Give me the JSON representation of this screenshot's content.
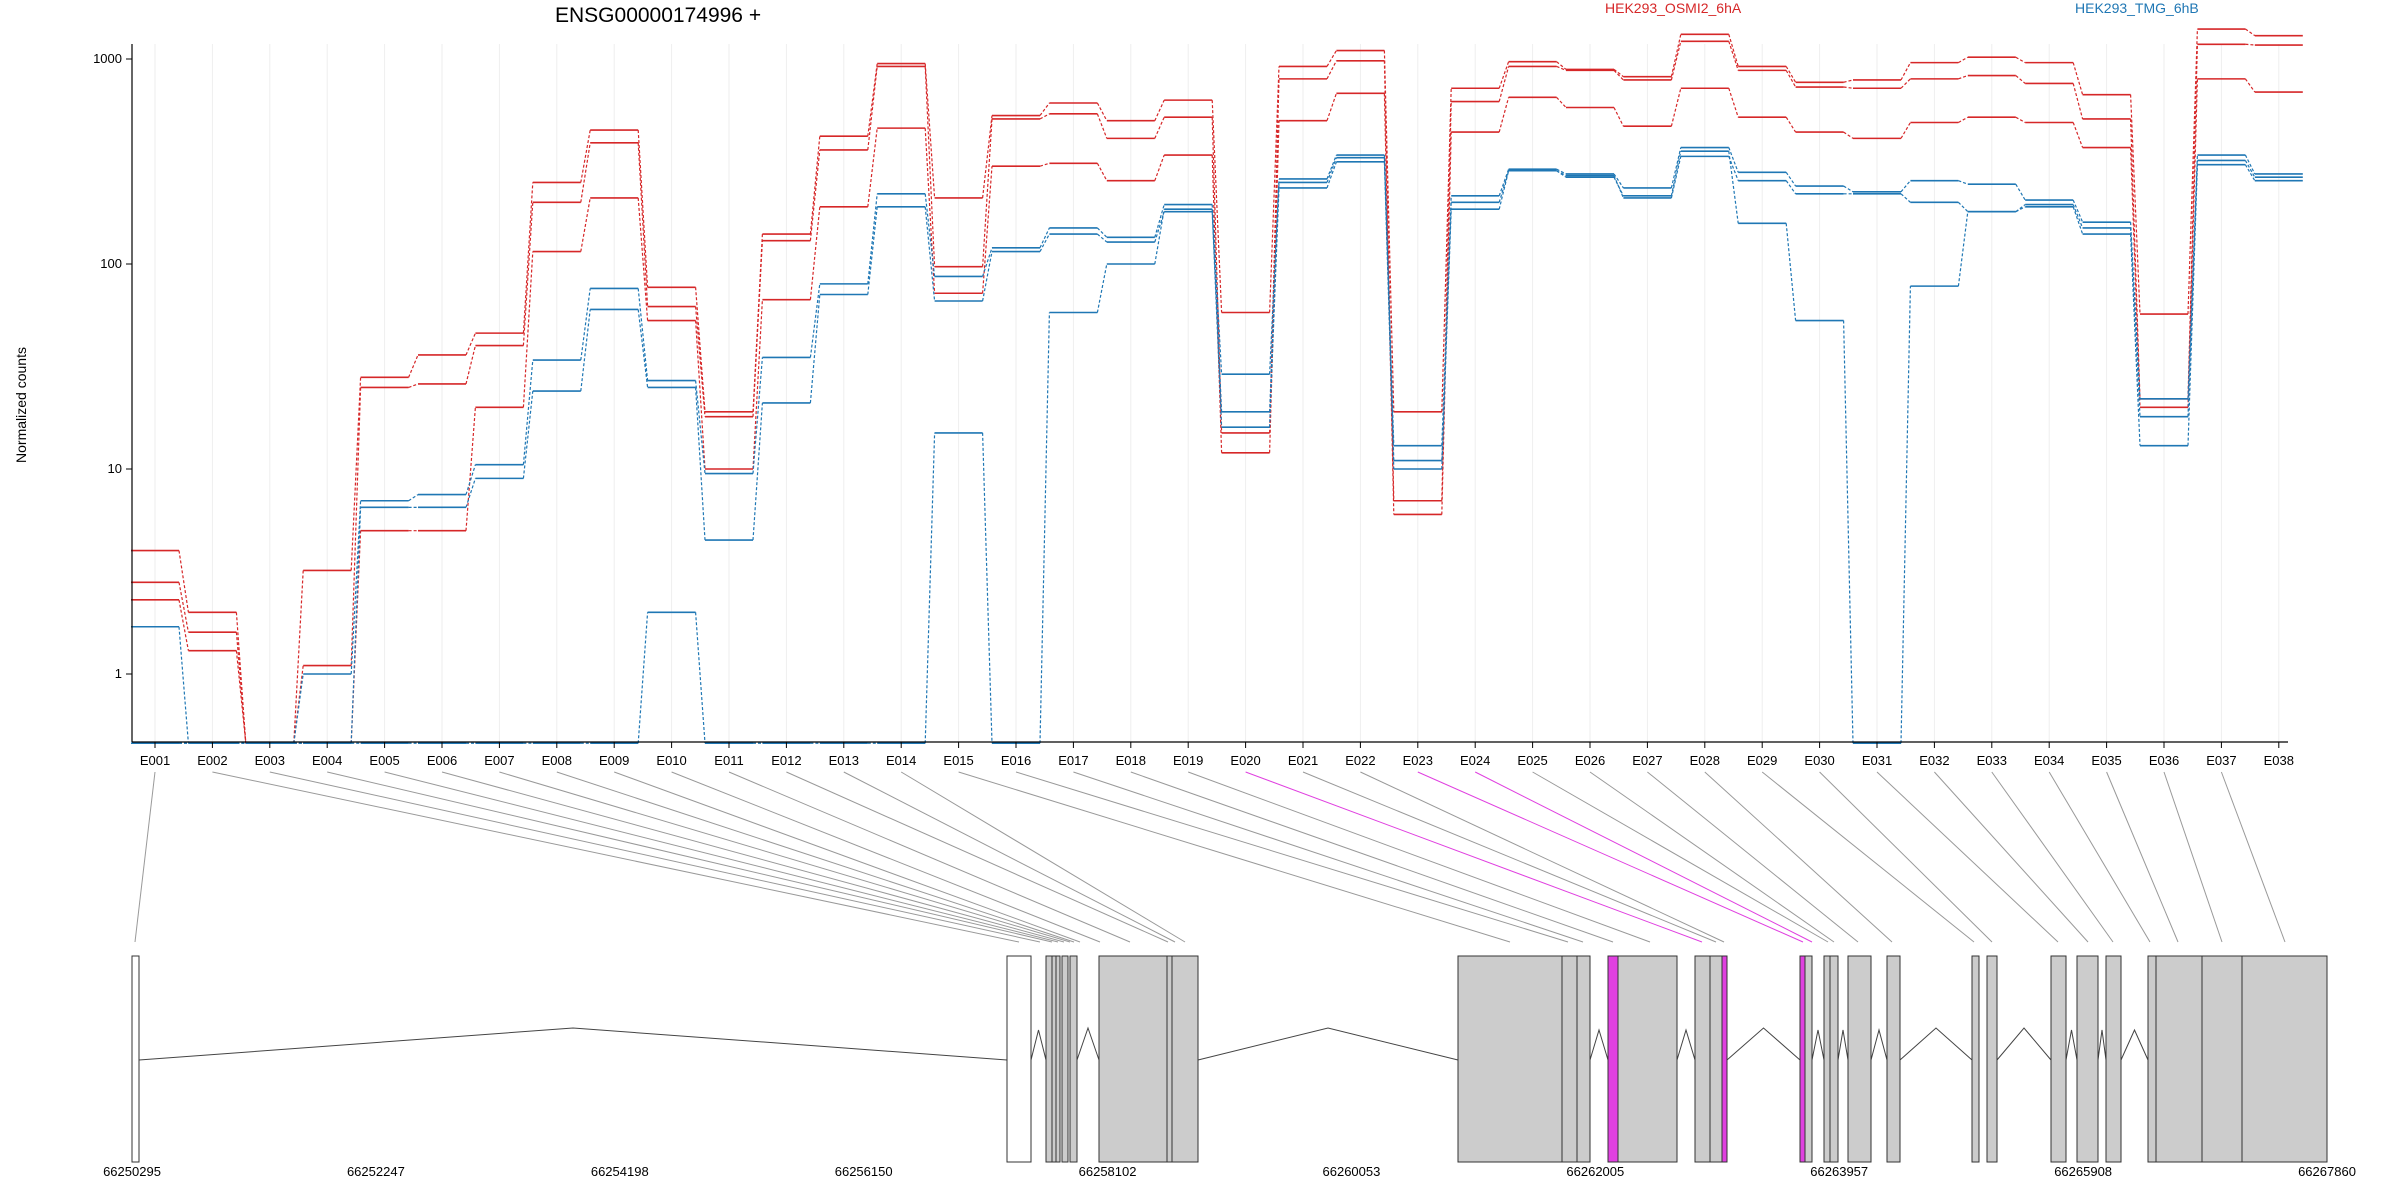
{
  "chart_data": {
    "type": "line",
    "title": "ENSG00000174996 +",
    "ylabel": "Normalized counts",
    "yscale": "log",
    "ylim": [
      0.5,
      1800
    ],
    "yticks": [
      "1",
      "10",
      "100",
      "1000"
    ],
    "yticks_values": [
      1,
      10,
      100,
      1000
    ],
    "grid": "vertical",
    "legend": [
      {
        "name": "HEK293_OSMI2_6hA",
        "color": "#d62728",
        "position": "top-center"
      },
      {
        "name": "HEK293_TMG_6hB",
        "color": "#1f77b4",
        "position": "top-right"
      }
    ],
    "categories": [
      "E001",
      "E002",
      "E003",
      "E004",
      "E005",
      "E006",
      "E007",
      "E008",
      "E009",
      "E010",
      "E011",
      "E012",
      "E013",
      "E014",
      "E015",
      "E016",
      "E017",
      "E018",
      "E019",
      "E020",
      "E021",
      "E022",
      "E023",
      "E024",
      "E025",
      "E026",
      "E027",
      "E028",
      "E029",
      "E030",
      "E031",
      "E032",
      "E033",
      "E034",
      "E035",
      "E036",
      "E037",
      "E038"
    ],
    "series": [
      {
        "group": "HEK293_OSMI2_6hA",
        "color": "#d62728",
        "values": [
          4,
          2,
          0.5,
          3.2,
          28,
          36,
          46,
          250,
          450,
          77,
          19,
          140,
          420,
          950,
          210,
          530,
          610,
          500,
          630,
          58,
          920,
          1100,
          19,
          720,
          970,
          890,
          820,
          1320,
          920,
          770,
          790,
          960,
          1020,
          960,
          670,
          57,
          1400,
          1300
        ]
      },
      {
        "group": "HEK293_OSMI2_6hA",
        "color": "#d62728",
        "values": [
          2.8,
          1.6,
          0.5,
          1.1,
          25,
          26,
          40,
          200,
          390,
          62,
          18,
          130,
          360,
          920,
          97,
          510,
          540,
          410,
          520,
          15,
          800,
          980,
          7,
          620,
          920,
          880,
          790,
          1220,
          880,
          730,
          720,
          800,
          830,
          760,
          510,
          22,
          1180,
          1170
        ]
      },
      {
        "group": "HEK293_OSMI2_6hA",
        "color": "#d62728",
        "values": [
          2.3,
          1.3,
          0.5,
          0.5,
          5,
          5,
          20,
          115,
          210,
          53,
          10,
          67,
          190,
          460,
          72,
          300,
          310,
          255,
          340,
          12,
          500,
          680,
          6,
          440,
          650,
          580,
          470,
          720,
          520,
          440,
          410,
          490,
          520,
          490,
          370,
          20,
          800,
          690
        ]
      },
      {
        "group": "HEK293_TMG_6hB",
        "color": "#1f77b4",
        "values": [
          1.7,
          0.5,
          0.5,
          1,
          7,
          7.5,
          10.5,
          34,
          76,
          27,
          9.5,
          35,
          80,
          220,
          87,
          120,
          150,
          135,
          195,
          29,
          260,
          340,
          13,
          215,
          290,
          275,
          235,
          370,
          280,
          240,
          225,
          255,
          245,
          205,
          160,
          22,
          340,
          275
        ]
      },
      {
        "group": "HEK293_TMG_6hB",
        "color": "#1f77b4",
        "values": [
          0.5,
          0.5,
          0.5,
          0.5,
          6.5,
          6.5,
          9,
          24,
          60,
          25,
          4.5,
          21,
          71,
          190,
          66,
          115,
          140,
          128,
          180,
          16,
          235,
          315,
          10,
          185,
          285,
          270,
          210,
          335,
          255,
          220,
          220,
          200,
          180,
          190,
          140,
          13,
          305,
          255
        ]
      },
      {
        "group": "HEK293_TMG_6hB",
        "color": "#1f77b4",
        "values": [
          0.5,
          0.5,
          0.5,
          0.5,
          0.5,
          0.5,
          0.5,
          0.5,
          0.5,
          2,
          0.5,
          0.5,
          0.5,
          0.5,
          15,
          0.5,
          58,
          100,
          185,
          19,
          250,
          330,
          11,
          200,
          285,
          265,
          215,
          355,
          158,
          53,
          0.5,
          78,
          180,
          195,
          150,
          18,
          320,
          265
        ]
      }
    ],
    "gene_model": {
      "coordinates": [
        "66250295",
        "66252247",
        "66254198",
        "66256150",
        "66258102",
        "66260053",
        "66262005",
        "66263957",
        "66265908",
        "66267860"
      ],
      "highlight_color": "#e040e0",
      "exon_fill": "#cccccc"
    }
  }
}
